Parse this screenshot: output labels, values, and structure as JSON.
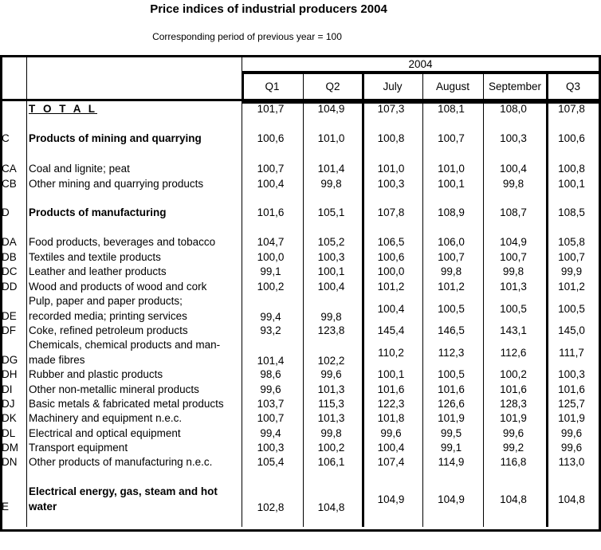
{
  "title": "Price indices of industrial producers 2004",
  "subtitle": "Corresponding period of previous year = 100",
  "header": {
    "year": "2004",
    "columns": [
      "Q1",
      "Q2",
      "July",
      "August",
      "September",
      "Q3"
    ]
  },
  "rows": [
    {
      "code": "",
      "label": "T O T A L",
      "style": "total",
      "values": [
        "101,7",
        "104,9",
        "107,3",
        "108,1",
        "108,0",
        "107,8"
      ]
    },
    {
      "code": "C",
      "label": "Products of mining and quarrying",
      "style": "bold",
      "values": [
        "100,6",
        "101,0",
        "100,8",
        "100,7",
        "100,3",
        "100,6"
      ]
    },
    {
      "code": "CA",
      "label": "Coal and lignite; peat",
      "values": [
        "100,7",
        "101,4",
        "101,0",
        "101,0",
        "100,4",
        "100,8"
      ]
    },
    {
      "code": "CB",
      "label": "Other mining and quarrying products",
      "values": [
        "100,4",
        "99,8",
        "100,3",
        "100,1",
        "99,8",
        "100,1"
      ]
    },
    {
      "code": "D",
      "label": "Products of manufacturing",
      "style": "bold",
      "values": [
        "101,6",
        "105,1",
        "107,8",
        "108,9",
        "108,7",
        "108,5"
      ]
    },
    {
      "code": "DA",
      "label": "Food products, beverages and tobacco",
      "values": [
        "104,7",
        "105,2",
        "106,5",
        "106,0",
        "104,9",
        "105,8"
      ]
    },
    {
      "code": "DB",
      "label": "Textiles and textile products",
      "values": [
        "100,0",
        "100,3",
        "100,6",
        "100,7",
        "100,7",
        "100,7"
      ]
    },
    {
      "code": "DC",
      "label": "Leather and leather products",
      "values": [
        "99,1",
        "100,1",
        "100,0",
        "99,8",
        "99,8",
        "99,9"
      ]
    },
    {
      "code": "DD",
      "label": "Wood and products of wood and cork",
      "values": [
        "100,2",
        "100,4",
        "101,2",
        "101,2",
        "101,3",
        "101,2"
      ]
    },
    {
      "code": "DE",
      "label": "Pulp, paper and paper products;",
      "label2": "recorded media; printing services",
      "values": [
        "99,4",
        "99,8",
        "100,4",
        "100,5",
        "100,5",
        "100,5"
      ]
    },
    {
      "code": "DF",
      "label": "Coke, refined petroleum products",
      "values": [
        "93,2",
        "123,8",
        "145,4",
        "146,5",
        "143,1",
        "145,0"
      ]
    },
    {
      "code": "DG",
      "label": "Chemicals, chemical products and man-",
      "label2": "made fibres",
      "values": [
        "101,4",
        "102,2",
        "110,2",
        "112,3",
        "112,6",
        "111,7"
      ]
    },
    {
      "code": "DH",
      "label": "Rubber and plastic products",
      "values": [
        "98,6",
        "99,6",
        "100,1",
        "100,5",
        "100,2",
        "100,3"
      ]
    },
    {
      "code": "DI",
      "label": "Other non-metallic mineral products",
      "values": [
        "99,6",
        "101,3",
        "101,6",
        "101,6",
        "101,6",
        "101,6"
      ]
    },
    {
      "code": "DJ",
      "label": "Basic metals & fabricated metal products",
      "values": [
        "103,7",
        "115,3",
        "122,3",
        "126,6",
        "128,3",
        "125,7"
      ]
    },
    {
      "code": "DK",
      "label": "Machinery and equipment n.e.c.",
      "values": [
        "100,7",
        "101,3",
        "101,8",
        "101,9",
        "101,9",
        "101,9"
      ]
    },
    {
      "code": "DL",
      "label": "Electrical and optical equipment",
      "values": [
        "99,4",
        "99,8",
        "99,6",
        "99,5",
        "99,6",
        "99,6"
      ]
    },
    {
      "code": "DM",
      "label": "Transport equipment",
      "values": [
        "100,3",
        "100,2",
        "100,4",
        "99,1",
        "99,2",
        "99,6"
      ]
    },
    {
      "code": "DN",
      "label": "Other products of manufacturing n.e.c.",
      "values": [
        "105,4",
        "106,1",
        "107,4",
        "114,9",
        "116,8",
        "113,0"
      ]
    },
    {
      "code": "E",
      "label": "Electrical energy, gas, steam and hot",
      "label2": "water",
      "style": "bold",
      "values": [
        "102,8",
        "104,8",
        "104,9",
        "104,9",
        "104,8",
        "104,8"
      ]
    }
  ]
}
